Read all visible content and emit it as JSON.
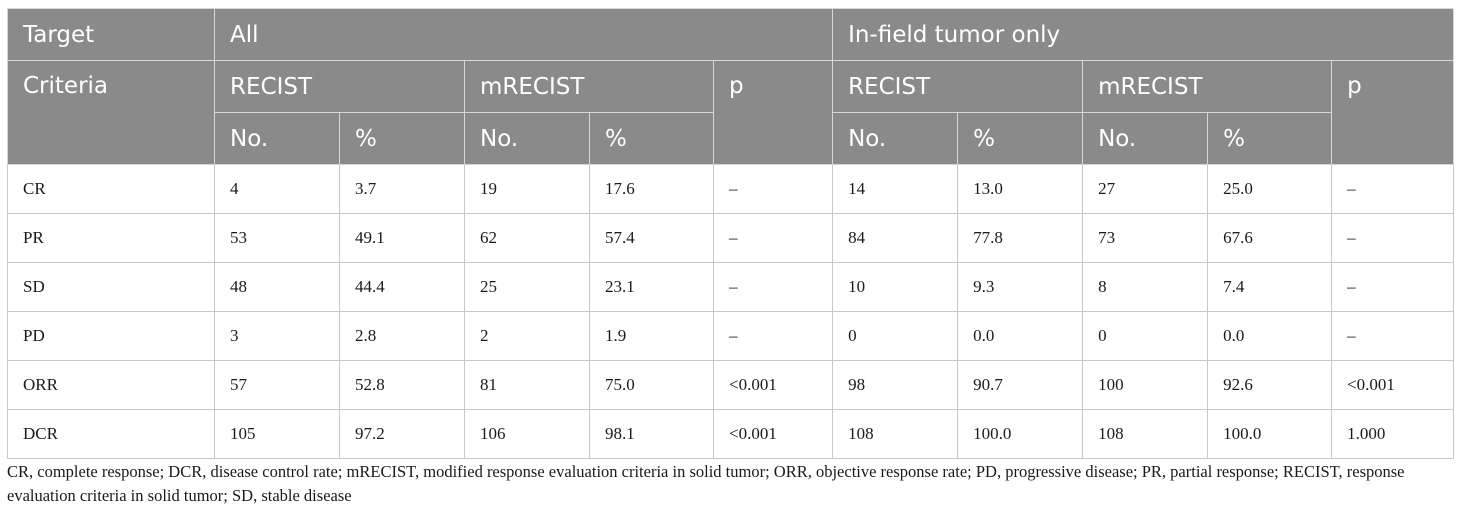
{
  "header": {
    "target_label": "Target",
    "all_label": "All",
    "infield_label": "In-field tumor only",
    "criteria_label": "Criteria",
    "recist_label": "RECIST",
    "mrecist_label": "mRECIST",
    "p_label": "p",
    "no_label": "No.",
    "pct_label": "%"
  },
  "rows": [
    {
      "label": "CR",
      "cells": [
        "4",
        "3.7",
        "19",
        "17.6",
        "–",
        "14",
        "13.0",
        "27",
        "25.0",
        "–"
      ]
    },
    {
      "label": "PR",
      "cells": [
        "53",
        "49.1",
        "62",
        "57.4",
        "–",
        "84",
        "77.8",
        "73",
        "67.6",
        "–"
      ]
    },
    {
      "label": "SD",
      "cells": [
        "48",
        "44.4",
        "25",
        "23.1",
        "–",
        "10",
        "9.3",
        "8",
        "7.4",
        "–"
      ]
    },
    {
      "label": "PD",
      "cells": [
        "3",
        "2.8",
        "2",
        "1.9",
        "–",
        "0",
        "0.0",
        "0",
        "0.0",
        "–"
      ]
    },
    {
      "label": "ORR",
      "cells": [
        "57",
        "52.8",
        "81",
        "75.0",
        "<0.001",
        "98",
        "90.7",
        "100",
        "92.6",
        "<0.001"
      ]
    },
    {
      "label": "DCR",
      "cells": [
        "105",
        "97.2",
        "106",
        "98.1",
        "<0.001",
        "108",
        "100.0",
        "108",
        "100.0",
        "1.000"
      ]
    }
  ],
  "footnote": "CR, complete response; DCR, disease control rate; mRECIST, modified response evaluation criteria in solid tumor; ORR, objective response rate; PD, progressive disease; PR, partial response; RECIST, response evaluation criteria in solid tumor; SD, stable disease",
  "colors": {
    "header_bg": "#8a8a8a",
    "header_text": "#ffffff",
    "border": "#c8c8c8",
    "body_text": "#1a1a1a"
  }
}
